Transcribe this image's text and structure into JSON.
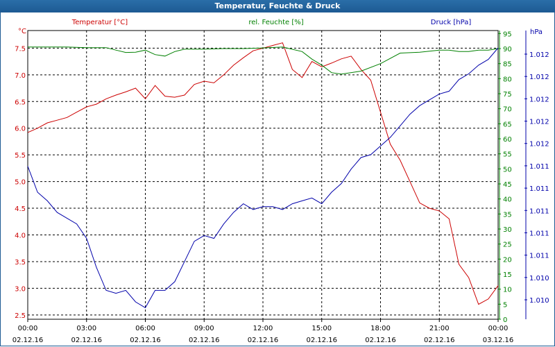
{
  "window": {
    "title": "Temperatur, Feuchte & Druck"
  },
  "colors": {
    "temperature": "#cc0000",
    "humidity": "#008000",
    "pressure": "#0000aa",
    "grid": "#000000",
    "title_bg": "#1d5a93"
  },
  "chart_data": {
    "type": "line",
    "title": "Temperatur, Feuchte & Druck",
    "grid": true,
    "x": {
      "labels": [
        "00:00",
        "03:00",
        "06:00",
        "09:00",
        "12:00",
        "15:00",
        "18:00",
        "21:00",
        "00:00"
      ],
      "dates": [
        "02.12.16",
        "02.12.16",
        "02.12.16",
        "02.12.16",
        "02.12.16",
        "02.12.16",
        "02.12.16",
        "02.12.16",
        "03.12.16"
      ],
      "range_hours": [
        0,
        24
      ]
    },
    "axes": {
      "temperature": {
        "label": "Temperatur [°C]",
        "unit": "°C",
        "range": [
          2.42,
          7.83
        ],
        "ticks": [
          "7.5",
          "7.0",
          "6.5",
          "6.0",
          "5.5",
          "5.0",
          "4.5",
          "4.0",
          "3.5",
          "3.0",
          "2.5"
        ]
      },
      "humidity": {
        "label": "rel. Feuchte [%]",
        "unit": "%",
        "range": [
          0,
          96
        ],
        "ticks": [
          "95",
          "90",
          "85",
          "80",
          "75",
          "70",
          "65",
          "60",
          "55",
          "50",
          "45",
          "40",
          "35",
          "30",
          "25",
          "20",
          "15",
          "10",
          "5",
          "0"
        ]
      },
      "pressure": {
        "label": "Druck [hPa]",
        "unit": "hPa",
        "ticks": [
          "1.012",
          "1.012",
          "1.012",
          "1.012",
          "1.012",
          "1.011",
          "1.011",
          "1.011",
          "1.011",
          "1.011",
          "1.010",
          "1.010"
        ]
      }
    },
    "series": [
      {
        "name": "Temperatur [°C]",
        "axis": "temperature",
        "x": [
          0,
          0.5,
          1,
          1.5,
          2,
          2.5,
          3,
          3.5,
          4,
          4.5,
          5,
          5.5,
          6,
          6.5,
          7,
          7.5,
          8,
          8.5,
          9,
          9.5,
          10,
          10.5,
          11,
          11.5,
          12,
          12.5,
          13,
          13.5,
          14,
          14.5,
          15,
          15.5,
          16,
          16.5,
          17,
          17.5,
          18,
          18.5,
          19,
          19.5,
          20,
          20.5,
          21,
          21.5,
          22,
          22.5,
          23,
          23.5,
          24
        ],
        "values": [
          5.92,
          6.0,
          6.1,
          6.15,
          6.2,
          6.3,
          6.4,
          6.45,
          6.55,
          6.62,
          6.68,
          6.75,
          6.55,
          6.8,
          6.6,
          6.58,
          6.62,
          6.82,
          6.88,
          6.85,
          7.0,
          7.18,
          7.32,
          7.45,
          7.5,
          7.55,
          7.6,
          7.1,
          6.95,
          7.25,
          7.15,
          7.22,
          7.3,
          7.35,
          7.1,
          6.9,
          6.3,
          5.7,
          5.4,
          5.0,
          4.6,
          4.5,
          4.45,
          4.3,
          3.45,
          3.2,
          2.7,
          2.8,
          3.05
        ]
      },
      {
        "name": "rel. Feuchte [%]",
        "axis": "humidity",
        "x": [
          0,
          1,
          2,
          3,
          4,
          4.5,
          5,
          5.5,
          6,
          6.5,
          7,
          7.5,
          8,
          9,
          10,
          11,
          12,
          13,
          14,
          14.5,
          15,
          15.5,
          16,
          17,
          18,
          19,
          20,
          21,
          21.5,
          22,
          22.5,
          23,
          23.5,
          24
        ],
        "values": [
          90.5,
          90.5,
          90.5,
          90.3,
          90.3,
          89.5,
          88.7,
          88.8,
          89.5,
          88.0,
          87.5,
          89.0,
          89.8,
          89.8,
          90.0,
          90.0,
          90.2,
          90.5,
          89.0,
          86.5,
          84.5,
          82.0,
          81.5,
          82.5,
          85.0,
          88.5,
          88.8,
          89.5,
          89.5,
          89.0,
          89.0,
          89.5,
          89.5,
          90.0
        ]
      },
      {
        "name": "Druck [hPa]",
        "axis": "pressure",
        "x": [
          0,
          0.5,
          1,
          1.5,
          2,
          2.5,
          3,
          3.5,
          4,
          4.5,
          5,
          5.5,
          6,
          6.5,
          7,
          7.5,
          8,
          8.5,
          9,
          9.5,
          10,
          10.5,
          11,
          11.5,
          12,
          12.5,
          13,
          13.5,
          14,
          14.5,
          15,
          15.5,
          16,
          16.5,
          17,
          17.5,
          18,
          18.5,
          19,
          19.5,
          20,
          20.5,
          21,
          21.5,
          22,
          22.5,
          23,
          23.5,
          24
        ],
        "values": [
          0.53,
          0.44,
          0.41,
          0.37,
          0.35,
          0.33,
          0.28,
          0.18,
          0.1,
          0.09,
          0.1,
          0.06,
          0.04,
          0.1,
          0.1,
          0.13,
          0.2,
          0.27,
          0.29,
          0.28,
          0.33,
          0.37,
          0.4,
          0.38,
          0.39,
          0.39,
          0.38,
          0.4,
          0.41,
          0.42,
          0.4,
          0.44,
          0.47,
          0.52,
          0.56,
          0.57,
          0.6,
          0.63,
          0.67,
          0.71,
          0.74,
          0.76,
          0.78,
          0.79,
          0.83,
          0.85,
          0.88,
          0.9,
          0.94
        ]
      }
    ]
  }
}
